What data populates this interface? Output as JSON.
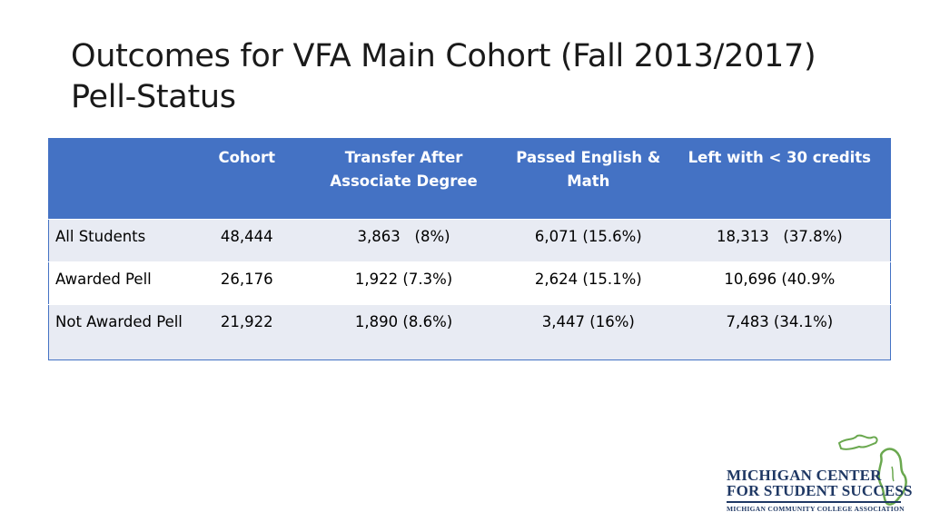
{
  "slide": {
    "title_line1": "Outcomes for VFA Main Cohort (Fall 2013/2017)",
    "title_line2": "Pell-Status"
  },
  "table": {
    "headers": [
      "",
      "Cohort",
      "Transfer After Associate Degree",
      "Passed English & Math",
      "Left with < 30 credits"
    ],
    "rows": [
      {
        "label": "All Students",
        "cells": [
          "48,444",
          "3,863   (8%)",
          "6,071 (15.6%)",
          "18,313   (37.8%)"
        ]
      },
      {
        "label": "Awarded Pell",
        "cells": [
          "26,176",
          "1,922 (7.3%)",
          "2,624 (15.1%)",
          "10,696 (40.9%"
        ]
      },
      {
        "label": "Not Awarded Pell",
        "cells": [
          "21,922",
          "1,890 (8.6%)",
          "3,447 (16%)",
          "7,483 (34.1%)"
        ]
      }
    ]
  },
  "logo": {
    "line1": "MICHIGAN CENTER",
    "line2": "FOR STUDENT SUCCESS",
    "subline": "MICHIGAN COMMUNITY COLLEGE ASSOCIATION",
    "icon": "michigan-map-icon",
    "colors": {
      "text": "#1f3864",
      "map": "#6aa84f"
    }
  },
  "colors": {
    "header_bg": "#4472c4",
    "band_bg": "#e8ebf3"
  }
}
